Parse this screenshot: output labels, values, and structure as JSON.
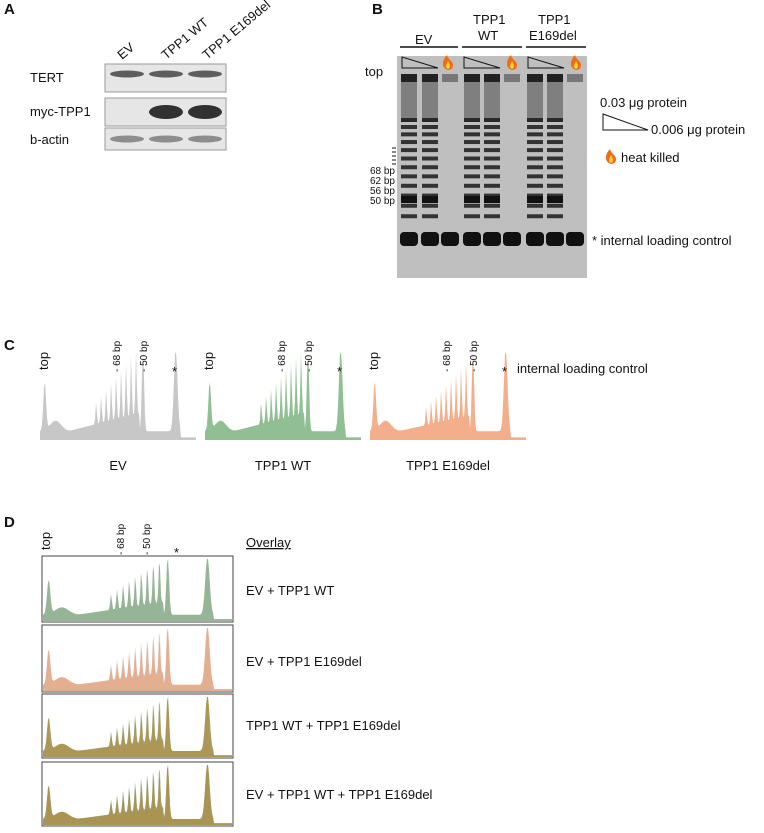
{
  "panels": {
    "a": {
      "label": "A",
      "columns": [
        "EV",
        "TPP1 WT",
        "TPP1 E169del"
      ],
      "rows": [
        "TERT",
        "myc-TPP1",
        "b-actin"
      ]
    },
    "b": {
      "label": "B",
      "groups": [
        [
          "EV"
        ],
        [
          "TPP1",
          "WT"
        ],
        [
          "TPP1",
          "E169del"
        ]
      ],
      "top": "top",
      "sizes": [
        "68 bp",
        "62 bp",
        "56 bp",
        "50 bp"
      ],
      "legend": {
        "high": "0.03 μg protein",
        "low": "0.006 μg protein",
        "heat": "heat killed",
        "control": "* internal loading control"
      }
    },
    "c": {
      "label": "C",
      "tracks": [
        {
          "top": "top",
          "marker68": "- 68 bp",
          "marker50": "- 50 bp",
          "star": "*",
          "name": "EV"
        },
        {
          "top": "top",
          "marker68": "- 68 bp",
          "marker50": "- 50 bp",
          "star": "*",
          "name": "TPP1 WT"
        },
        {
          "top": "top",
          "marker68": "- 68 bp",
          "marker50": "- 50 bp",
          "star": "*",
          "name": "TPP1 E169del"
        }
      ],
      "control": "internal loading control"
    },
    "d": {
      "label": "D",
      "top": "top",
      "marker68": "- 68 bp",
      "marker50": "- 50 bp",
      "star": "*",
      "overlay": "Overlay",
      "rows": [
        "EV + TPP1 WT",
        "EV + TPP1 E169del",
        "TPP1 WT + TPP1 E169del",
        "EV + TPP1 WT + TPP1 E169del"
      ]
    }
  }
}
